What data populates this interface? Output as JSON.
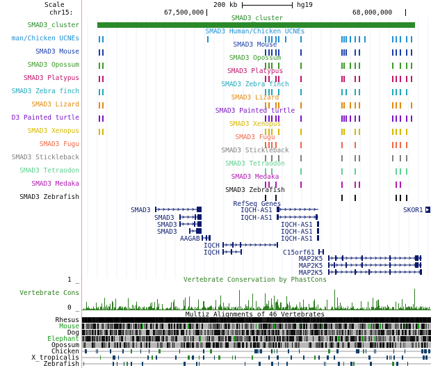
{
  "ruler": {
    "scale_label": "Scale",
    "chrom_label": "chr15:",
    "scale_value": "200 kb",
    "assembly": "hg19",
    "pos1": "67,500,000",
    "pos2": "68,000,000"
  },
  "cluster": {
    "label": "SMAD3_cluster",
    "name": "SMAD3_cluster",
    "color": "#2a8a2a"
  },
  "ucne_tracks": [
    {
      "label": "man/Chicken UCNEs",
      "title": "SMAD3 Human/Chicken UCNEs",
      "color": "#1f8fd0"
    },
    {
      "label": "SMAD3 Mouse",
      "title": "SMAD3 Mouse",
      "color": "#1a3ea8"
    },
    {
      "label": "SMAD3 Opossum",
      "title": "SMAD3 Opossum",
      "color": "#3c9a28"
    },
    {
      "label": "SMAD3 Platypus",
      "title": "SMAD3 Platypus",
      "color": "#c0166a"
    },
    {
      "label": "SMAD3 Zebra finch",
      "title": "SMAD3 Zebra finch",
      "color": "#1fa8b8"
    },
    {
      "label": "SMAD3 Lizard",
      "title": "SMAD3 Lizard",
      "color": "#e08a10"
    },
    {
      "label": "D3 Painted turtle",
      "title": "SMAD3 Painted turtle",
      "color": "#7a16c0"
    },
    {
      "label": "SMAD3 Xenopus",
      "title": "SMAD3 Xenopus",
      "color": "#d4b800"
    },
    {
      "label": "SMAD3 Fugu",
      "title": "SMAD3 Fugu",
      "color": "#f06848"
    },
    {
      "label": "SMAD3 Stickleback",
      "title": "SMAD3 Stickleback",
      "color": "#808080"
    },
    {
      "label": "SMAD3 Tetraodon",
      "title": "SMAD3 Tetraodon",
      "color": "#60d090"
    },
    {
      "label": "SMAD3 Medaka",
      "title": "SMAD3 Medaka",
      "color": "#b01ab0"
    },
    {
      "label": "SMAD3 Zebrafish",
      "title": "SMAD3 Zebrafish",
      "color": "#101010"
    }
  ],
  "refseq": {
    "title": "RefSeq Genes",
    "color": "#0a1a6e",
    "genes": [
      "SMAD3",
      "SMAD3",
      "SMAD3",
      "SMAD3",
      "AAGAB",
      "IQCH",
      "IQCH",
      "IQCH-AS1",
      "IQCH-AS1",
      "IQCH-AS1",
      "IQCH-AS1",
      "IQCH-AS1",
      "C15orf61",
      "MAP2K5",
      "MAP2K5",
      "MAP2K5",
      "SKOR1"
    ]
  },
  "conservation": {
    "title": "Vertebrate Conservation by PhastCons",
    "label": "Vertebrate Cons",
    "ymax": "1 _",
    "ymin": "0 _",
    "color": "#2e7d20"
  },
  "multiz": {
    "title": "Multiz Alignments of 46 Vertebrates",
    "species": [
      {
        "name": "Rhesus",
        "color": "#000000"
      },
      {
        "name": "Mouse",
        "color": "#1a9a1a"
      },
      {
        "name": "Dog",
        "color": "#000000"
      },
      {
        "name": "Elephant",
        "color": "#1a9a1a"
      },
      {
        "name": "Opossum",
        "color": "#000000"
      },
      {
        "name": "Chicken",
        "color": "#000000"
      },
      {
        "name": "X_tropicalis",
        "color": "#000000"
      },
      {
        "name": "Zebrafish",
        "color": "#000000"
      }
    ]
  }
}
